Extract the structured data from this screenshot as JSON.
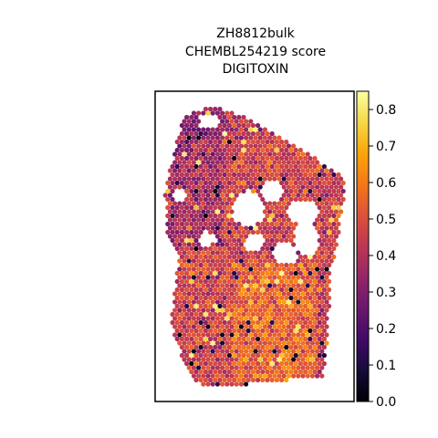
{
  "chart_data": {
    "type": "scatter",
    "title_lines": [
      "ZH8812bulk",
      "CHEMBL254219 score",
      "DIGITOXIN"
    ],
    "xlabel": "",
    "ylabel": "",
    "axes_ticks_visible": false,
    "colormap": "inferno",
    "colorbar": {
      "range": [
        0.0,
        0.85
      ],
      "ticks": [
        "0.0",
        "0.1",
        "0.2",
        "0.3",
        "0.4",
        "0.5",
        "0.6",
        "0.7",
        "0.8"
      ]
    },
    "tissue_spots": {
      "description_of_values": "per-spot score on 0-0.85 scale; majority in 0.3-0.6",
      "approximate_distribution": {
        "median": 0.45,
        "min": 0.0,
        "max": 0.85
      }
    }
  },
  "colors": {
    "frame": "#000000",
    "background": "#ffffff"
  }
}
